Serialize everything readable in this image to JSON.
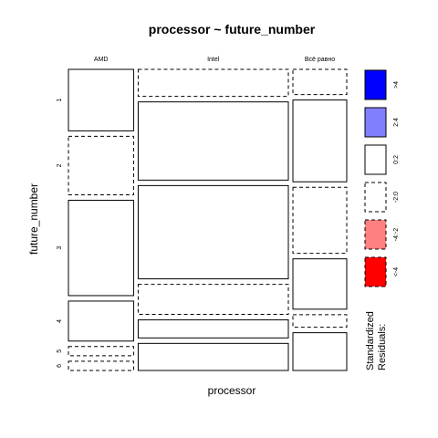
{
  "chart_data": {
    "type": "mosaic",
    "title": "processor ~ future_number",
    "xlabel": "processor",
    "ylabel": "future_number",
    "columns": [
      "AMD",
      "Intel",
      "Всё равно"
    ],
    "rows": [
      "1",
      "2",
      "3",
      "4",
      "5",
      "6"
    ],
    "column_shares": [
      0.23,
      0.53,
      0.19
    ],
    "cells": [
      [
        {
          "share": 0.2,
          "residual_class": "0:2"
        },
        {
          "share": 0.09,
          "residual_class": "-2:0"
        },
        {
          "share": 0.08,
          "residual_class": "-2:0"
        }
      ],
      [
        {
          "share": 0.19,
          "residual_class": "-2:0"
        },
        {
          "share": 0.26,
          "residual_class": "0:2"
        },
        {
          "share": 0.26,
          "residual_class": "0:2"
        }
      ],
      [
        {
          "share": 0.31,
          "residual_class": "0:2"
        },
        {
          "share": 0.31,
          "residual_class": "0:2"
        },
        {
          "share": 0.21,
          "residual_class": "-2:0"
        }
      ],
      [
        {
          "share": 0.13,
          "residual_class": "0:2"
        },
        {
          "share": 0.1,
          "residual_class": "-2:0"
        },
        {
          "share": 0.16,
          "residual_class": "0:2"
        }
      ],
      [
        {
          "share": 0.03,
          "residual_class": "-2:0"
        },
        {
          "share": 0.06,
          "residual_class": "0:2"
        },
        {
          "share": 0.04,
          "residual_class": "-2:0"
        }
      ],
      [
        {
          "share": 0.03,
          "residual_class": "-2:0"
        },
        {
          "share": 0.09,
          "residual_class": "0:2"
        },
        {
          "share": 0.12,
          "residual_class": "0:2"
        }
      ]
    ],
    "legend": {
      "title_lines": [
        "Standardized",
        "Residuals:"
      ],
      "position": "right",
      "entries": [
        {
          "label": ">4",
          "fill": "#0000FF",
          "dashed": false
        },
        {
          "label": "2:4",
          "fill": "#8080FF",
          "dashed": false
        },
        {
          "label": "0:2",
          "fill": "#FFFFFF",
          "dashed": false
        },
        {
          "label": "-2:0",
          "fill": "#FFFFFF",
          "dashed": true
        },
        {
          "label": "-4:-2",
          "fill": "#FF8080",
          "dashed": true
        },
        {
          "label": "<-4",
          "fill": "#FF0000",
          "dashed": true
        }
      ]
    }
  }
}
